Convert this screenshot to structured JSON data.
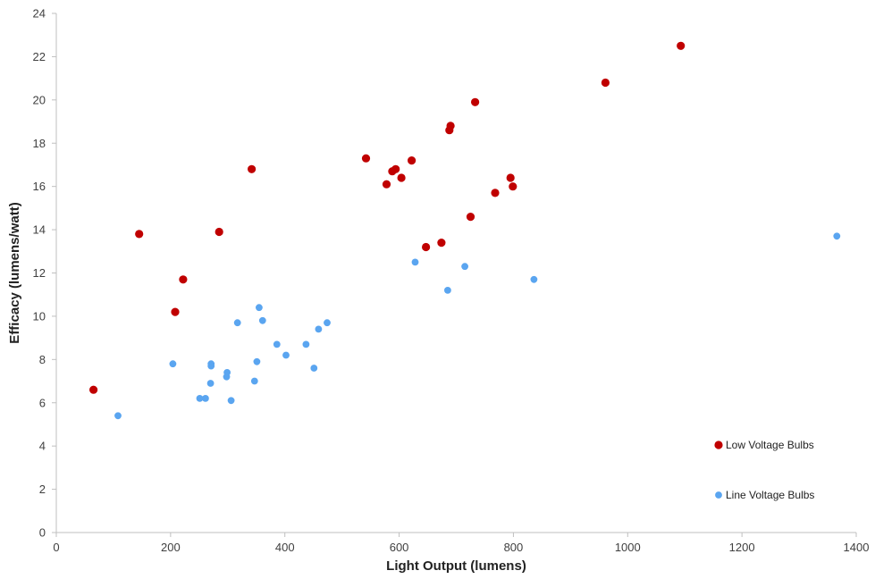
{
  "chart_data": {
    "type": "scatter",
    "title": "",
    "xlabel": "Light Output (lumens)",
    "ylabel": "Efficacy (lumens/watt)",
    "xlim": [
      0,
      1400
    ],
    "ylim": [
      0,
      24
    ],
    "xticks": [
      0,
      200,
      400,
      600,
      800,
      1000,
      1200,
      1400
    ],
    "yticks": [
      0,
      2,
      4,
      6,
      8,
      10,
      12,
      14,
      16,
      18,
      20,
      22,
      24
    ],
    "grid": false,
    "legend_position": "bottom-right",
    "series": [
      {
        "name": "Low Voltage Bulbs",
        "color": "#c00000",
        "points": [
          [
            65,
            6.6
          ],
          [
            145,
            13.8
          ],
          [
            208,
            10.2
          ],
          [
            222,
            11.7
          ],
          [
            285,
            13.9
          ],
          [
            342,
            16.8
          ],
          [
            542,
            17.3
          ],
          [
            578,
            16.1
          ],
          [
            588,
            16.7
          ],
          [
            594,
            16.8
          ],
          [
            604,
            16.4
          ],
          [
            622,
            17.2
          ],
          [
            647,
            13.2
          ],
          [
            674,
            13.4
          ],
          [
            688,
            18.6
          ],
          [
            690,
            18.8
          ],
          [
            725,
            14.6
          ],
          [
            733,
            19.9
          ],
          [
            768,
            15.7
          ],
          [
            795,
            16.4
          ],
          [
            799,
            16.0
          ],
          [
            961,
            20.8
          ],
          [
            1093,
            22.5
          ]
        ]
      },
      {
        "name": "Line Voltage Bulbs",
        "color": "#5aa5f0",
        "points": [
          [
            108,
            5.4
          ],
          [
            204,
            7.8
          ],
          [
            251,
            6.2
          ],
          [
            261,
            6.2
          ],
          [
            271,
            7.8
          ],
          [
            271,
            7.7
          ],
          [
            270,
            6.9
          ],
          [
            298,
            7.2
          ],
          [
            299,
            7.4
          ],
          [
            306,
            6.1
          ],
          [
            317,
            9.7
          ],
          [
            347,
            7.0
          ],
          [
            351,
            7.9
          ],
          [
            355,
            10.4
          ],
          [
            361,
            9.8
          ],
          [
            386,
            8.7
          ],
          [
            402,
            8.2
          ],
          [
            437,
            8.7
          ],
          [
            451,
            7.6
          ],
          [
            459,
            9.4
          ],
          [
            474,
            9.7
          ],
          [
            628,
            12.5
          ],
          [
            685,
            11.2
          ],
          [
            715,
            12.3
          ],
          [
            836,
            11.7
          ],
          [
            1366,
            13.7
          ]
        ]
      }
    ]
  }
}
